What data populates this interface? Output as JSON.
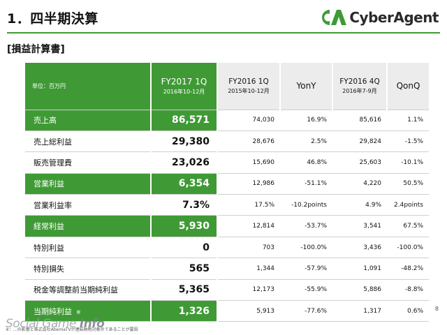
{
  "header": {
    "title": "1．四半期決算",
    "logo_text": "CyberAgent"
  },
  "section_label": "[損益計算書]",
  "table": {
    "unit_label": "単位：百万円",
    "columns": [
      {
        "line1": "FY2017 1Q",
        "line2": "2016年10-12月"
      },
      {
        "line1": "FY2016 1Q",
        "line2": "2015年10-12月"
      },
      {
        "line1": "YonY",
        "line2": ""
      },
      {
        "line1": "FY2016 4Q",
        "line2": "2016年7-9月"
      },
      {
        "line1": "QonQ",
        "line2": ""
      }
    ],
    "rows": [
      {
        "label": "売上高",
        "cur": "86,571",
        "prev": "74,030",
        "yony": "16.9%",
        "q4": "85,616",
        "qonq": "1.1%",
        "highlight": true
      },
      {
        "label": "売上総利益",
        "cur": "29,380",
        "prev": "28,676",
        "yony": "2.5%",
        "q4": "29,824",
        "qonq": "-1.5%",
        "highlight": false
      },
      {
        "label": "販売管理費",
        "cur": "23,026",
        "prev": "15,690",
        "yony": "46.8%",
        "q4": "25,603",
        "qonq": "-10.1%",
        "highlight": false
      },
      {
        "label": "営業利益",
        "cur": "6,354",
        "prev": "12,986",
        "yony": "-51.1%",
        "q4": "4,220",
        "qonq": "50.5%",
        "highlight": true
      },
      {
        "label": "営業利益率",
        "cur": "7.3%",
        "prev": "17.5%",
        "yony": "-10.2points",
        "q4": "4.9%",
        "qonq": "2.4points",
        "highlight": false
      },
      {
        "label": "経常利益",
        "cur": "5,930",
        "prev": "12,814",
        "yony": "-53.7%",
        "q4": "3,541",
        "qonq": "67.5%",
        "highlight": true
      },
      {
        "label": "特別利益",
        "cur": "0",
        "prev": "703",
        "yony": "-100.0%",
        "q4": "3,436",
        "qonq": "-100.0%",
        "highlight": false
      },
      {
        "label": "特別損失",
        "cur": "565",
        "prev": "1,344",
        "yony": "-57.9%",
        "q4": "1,091",
        "qonq": "-48.2%",
        "highlight": false
      },
      {
        "label": "税金等調整前当期純利益",
        "cur": "5,365",
        "prev": "12,173",
        "yony": "-55.9%",
        "q4": "5,886",
        "qonq": "-8.8%",
        "highlight": false
      },
      {
        "label": "当期純利益",
        "note": "※",
        "cur": "1,326",
        "prev": "5,913",
        "yony": "-77.6%",
        "q4": "1,317",
        "qonq": "0.6%",
        "highlight": true
      }
    ]
  },
  "watermark": {
    "prefix": "Social Game ",
    "suffix": "Info"
  },
  "footnote": "※：...の影響と株式会社AbemaTVが連結納税対象外であることが要因",
  "page_number": "8",
  "colors": {
    "brand_green": "#3f9a35",
    "header_gray": "#ececec"
  }
}
